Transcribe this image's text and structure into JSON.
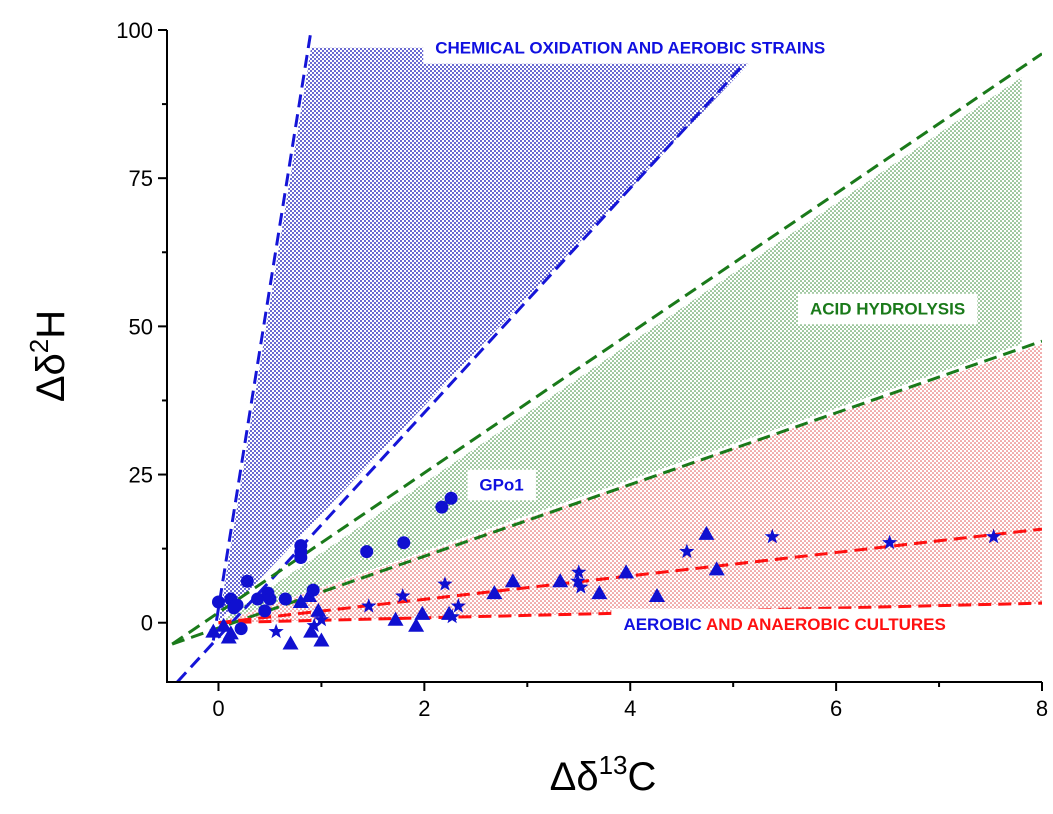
{
  "chart_data": {
    "type": "scatter",
    "title": "",
    "xlabel": {
      "delta": "Δδ",
      "sup": "13",
      "base": "C"
    },
    "ylabel": {
      "delta": "Δδ",
      "sup": "2",
      "base": "H"
    },
    "xlim": [
      -0.5,
      8
    ],
    "ylim": [
      -10,
      100
    ],
    "xticks": [
      "0",
      "2",
      "4",
      "6",
      "8"
    ],
    "yticks": [
      "0",
      "25",
      "50",
      "75",
      "100"
    ],
    "grid": false,
    "colors": {
      "points": "#1010d0",
      "blue_region": "#3030c0",
      "green_region": "#208020",
      "red_region": "#e04040",
      "blue_line": "#1515d8",
      "green_line": "#1a7a1a",
      "red_line": "#ff1010"
    },
    "regions": [
      {
        "name": "chemical-oxidation",
        "color": "#3030c0",
        "polygon": [
          [
            0,
            0
          ],
          [
            0.9,
            97
          ],
          [
            5.3,
            97
          ]
        ]
      },
      {
        "name": "acid-hydrolysis",
        "color": "#208020",
        "polygon": [
          [
            0,
            0
          ],
          [
            7.8,
            92
          ],
          [
            7.8,
            47
          ]
        ]
      },
      {
        "name": "aerobic-anaerobic",
        "color": "#e04040",
        "polygon": [
          [
            0,
            0
          ],
          [
            8,
            47
          ],
          [
            8,
            3.2
          ]
        ]
      }
    ],
    "lines": [
      {
        "name": "blue-line-outer",
        "color": "#1515d8",
        "x": [
          -0.05,
          0.9
        ],
        "y": [
          -3,
          100
        ]
      },
      {
        "name": "blue-line-inner",
        "color": "#1515d8",
        "x": [
          -0.4,
          5.25
        ],
        "y": [
          -10,
          97
        ]
      },
      {
        "name": "green-line-upper",
        "color": "#1a7a1a",
        "x": [
          -0.45,
          8
        ],
        "y": [
          -3.6,
          96
        ]
      },
      {
        "name": "green-line-lower",
        "color": "#1a7a1a",
        "x": [
          -0.45,
          8
        ],
        "y": [
          -3.6,
          47.5
        ]
      },
      {
        "name": "red-line-upper",
        "color": "#ff1010",
        "x": [
          0,
          8
        ],
        "y": [
          0,
          15.8
        ]
      },
      {
        "name": "red-line-lower",
        "color": "#ff1010",
        "x": [
          0,
          8
        ],
        "y": [
          0,
          3.3
        ]
      }
    ],
    "series": [
      {
        "marker": "circle",
        "x": [
          0.0,
          0.12,
          0.15,
          0.18,
          0.22,
          0.28,
          0.38,
          0.45,
          0.48,
          0.5,
          0.65,
          0.8,
          0.8,
          0.8,
          0.92,
          1.44,
          1.8,
          2.17,
          2.26
        ],
        "y": [
          3.5,
          4.0,
          2.5,
          3.0,
          -1.0,
          7.0,
          4.0,
          2.0,
          5.0,
          4.0,
          4.0,
          13.0,
          12.0,
          11.0,
          5.5,
          12.0,
          13.5,
          19.5,
          21.0
        ]
      },
      {
        "marker": "triangle",
        "x": [
          -0.05,
          0.05,
          0.1,
          0.12,
          0.7,
          0.8,
          0.88,
          0.9,
          0.97,
          1.0,
          1.72,
          1.92,
          1.98,
          2.24,
          2.68,
          2.86,
          3.32,
          3.7,
          3.96,
          4.26,
          4.74,
          4.84
        ],
        "y": [
          -1.5,
          -0.5,
          -2.5,
          -1.8,
          -3.5,
          3.5,
          4.5,
          -1.5,
          2.0,
          -3.0,
          0.5,
          -0.5,
          1.5,
          1.5,
          5.0,
          7.0,
          7.0,
          5.0,
          8.5,
          4.5,
          15.0,
          9.0
        ]
      },
      {
        "marker": "star",
        "x": [
          0.56,
          0.93,
          1.0,
          1.46,
          1.79,
          2.2,
          2.27,
          2.33,
          3.49,
          3.5,
          3.52,
          4.55,
          5.38,
          6.52,
          7.53
        ],
        "y": [
          -1.5,
          -0.5,
          0.5,
          2.8,
          4.5,
          6.5,
          1.0,
          2.8,
          7.0,
          8.5,
          6.0,
          12.0,
          14.5,
          13.5,
          14.5
        ]
      }
    ],
    "annotations": [
      {
        "name": "label-chemical-oxidation",
        "x": 4.0,
        "y": 96,
        "parts": [
          {
            "text": "CHEMICAL OXIDATION AND AEROBIC STRAINS",
            "color": "#1010e0"
          }
        ]
      },
      {
        "name": "label-acid-hydrolysis",
        "x": 6.5,
        "y": 52,
        "parts": [
          {
            "text": "ACID HYDROLYSIS",
            "color": "#1a7a1a"
          }
        ]
      },
      {
        "name": "label-gpo1",
        "x": 2.75,
        "y": 22.3,
        "parts": [
          {
            "text": "GPo1",
            "color": "#1010e0"
          }
        ]
      },
      {
        "name": "label-cultures",
        "x": 5.5,
        "y": -1.2,
        "parts": [
          {
            "text": "AEROBIC ",
            "color": "#1010e0"
          },
          {
            "text": "AND ANAEROBIC CULTURES",
            "color": "#ff1010"
          }
        ]
      }
    ]
  }
}
